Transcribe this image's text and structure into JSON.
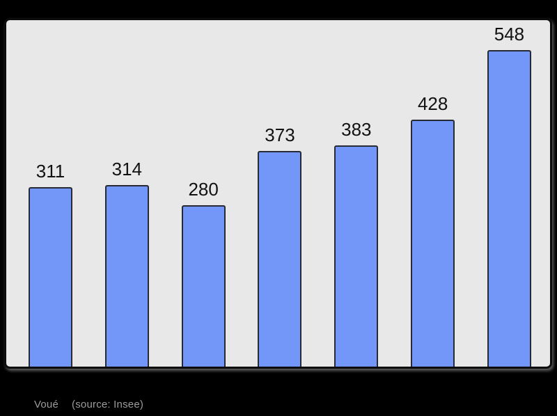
{
  "page": {
    "background_color": "#000000",
    "plot_background_color": "#e8e8e8",
    "frame_border_color": "#0c0c0c"
  },
  "chart_data": {
    "type": "bar",
    "values": [
      311,
      314,
      280,
      373,
      383,
      428,
      548
    ],
    "value_labels": [
      "311",
      "314",
      "280",
      "373",
      "383",
      "428",
      "548"
    ],
    "title": "",
    "xlabel": "",
    "ylabel": "",
    "ylim": [
      0,
      600
    ],
    "grid": false,
    "legend": false,
    "axes_visible": false,
    "bar_color": "#7397f8",
    "bar_border_color": "#272a35",
    "value_label_color": "#111111",
    "layout": "value labels above each bar, bars flush with plot bottom edge"
  },
  "caption": {
    "title": "Voué",
    "source": "(source: Insee)",
    "color": "#9c9c9c"
  }
}
